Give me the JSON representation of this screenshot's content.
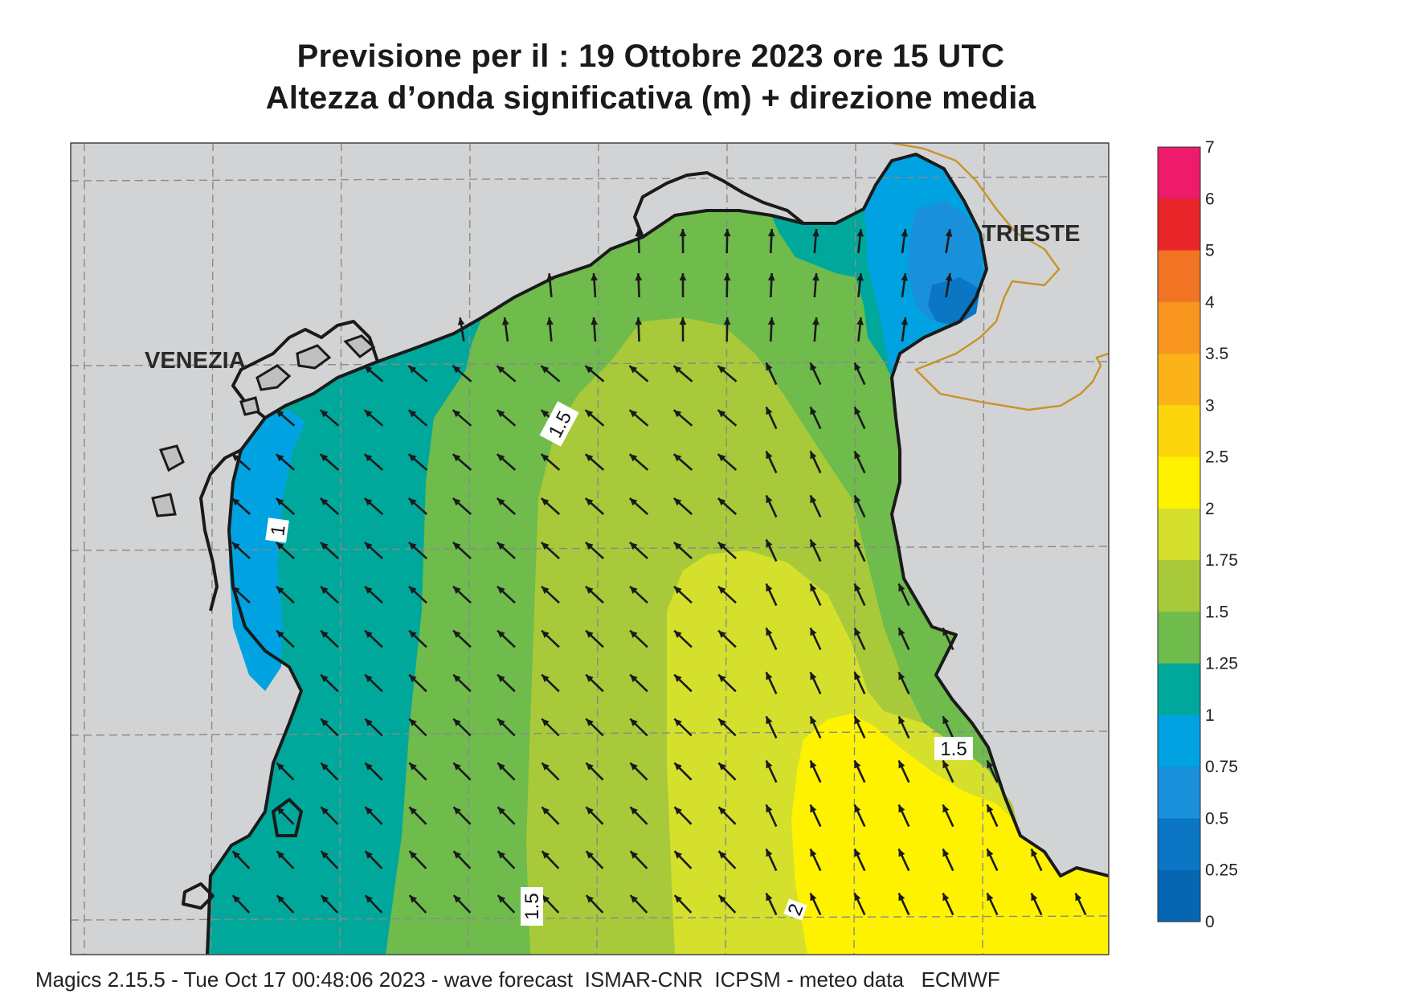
{
  "title_line1": "Previsione per il  :  19  Ottobre  2023   ore 15 UTC",
  "title_line2": "Altezza d’onda significativa (m) + direzione media",
  "footer": "Magics 2.15.5 - Tue Oct 17 00:48:06 2023 - wave forecast  ISMAR-CNR  ICPSM - meteo data   ECMWF",
  "places": {
    "venezia": "VENEZIA",
    "trieste": "TRIESTE"
  },
  "contour_labels": [
    "1.5",
    "1",
    "1.5",
    "1.5",
    "2"
  ],
  "colorbar": {
    "labels": [
      "7",
      "6",
      "5",
      "4",
      "3.5",
      "3",
      "2.5",
      "2",
      "1.75",
      "1.5",
      "1.25",
      "1",
      "0.75",
      "0.5",
      "0.25",
      "0"
    ],
    "colors": [
      "#ee1a6a",
      "#e8262a",
      "#f07424",
      "#f7951e",
      "#fbb319",
      "#fcd60a",
      "#fff200",
      "#d4e02c",
      "#a8c93a",
      "#6fbb4c",
      "#00a89c",
      "#00a2e2",
      "#1a8fda",
      "#0a76c4",
      "#0766b2"
    ]
  },
  "colors": {
    "land": "#d2d3d4",
    "coast": "#1a1a1a",
    "border": "#c8922a",
    "grid": "#8a8a8a",
    "arrow": "#1a1a1a"
  },
  "wave_direction": "NW"
}
